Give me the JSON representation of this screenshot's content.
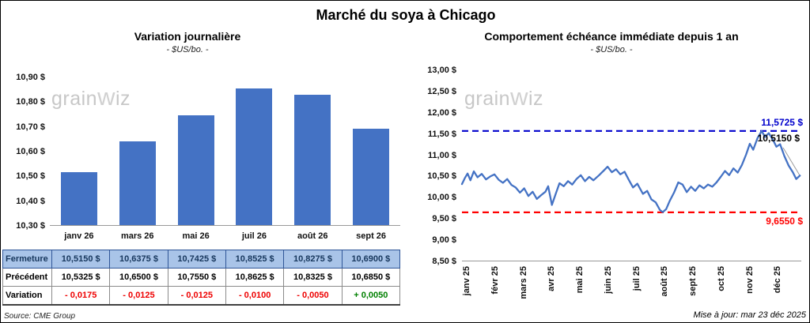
{
  "page": {
    "title": "Marché du soya à Chicago",
    "source": "Source: CME Group",
    "updated": "Mise à jour: mar 23 déc 2025",
    "watermark": {
      "pre": "grain",
      "mid": "w",
      "post": "iz"
    }
  },
  "chart_data": [
    {
      "type": "bar",
      "title": "Variation journalière",
      "subtitle": "- $US/bo. -",
      "categories": [
        "janv 26",
        "mars 26",
        "mai 26",
        "juil 26",
        "août 26",
        "sept 26"
      ],
      "values": [
        10.515,
        10.6375,
        10.7425,
        10.8525,
        10.8275,
        10.69
      ],
      "ylim": [
        10.3,
        10.9
      ],
      "yticks": [
        "10,30 $",
        "10,40 $",
        "10,50 $",
        "10,60 $",
        "10,70 $",
        "10,80 $",
        "10,90 $"
      ],
      "bar_color": "#4472C4",
      "table": {
        "rows": [
          {
            "label": "Fermeture",
            "values": [
              "10,5150  $",
              "10,6375  $",
              "10,7425  $",
              "10,8525  $",
              "10,8275  $",
              "10,6900  $"
            ]
          },
          {
            "label": "Précédent",
            "values": [
              "10,5325  $",
              "10,6500  $",
              "10,7550  $",
              "10,8625  $",
              "10,8325  $",
              "10,6850  $"
            ]
          },
          {
            "label": "Variation",
            "values": [
              "- 0,0175",
              "- 0,0125",
              "- 0,0125",
              "- 0,0100",
              "- 0,0050",
              "+ 0,0050"
            ],
            "value_colors": [
              "#ee0000",
              "#ee0000",
              "#ee0000",
              "#ee0000",
              "#ee0000",
              "#008000"
            ]
          }
        ]
      }
    },
    {
      "type": "line",
      "title": "Comportement échéance immédiate depuis 1 an",
      "subtitle": "- $US/bo. -",
      "x_labels": [
        "janv 25",
        "févr 25",
        "mars 25",
        "avr 25",
        "mai 25",
        "juin 25",
        "juil 25",
        "août 25",
        "sept 25",
        "oct 25",
        "nov 25",
        "déc 25"
      ],
      "ylim": [
        8.5,
        13.0
      ],
      "yticks": [
        "8,50 $",
        "9,00 $",
        "9,50 $",
        "10,00 $",
        "10,50 $",
        "11,00 $",
        "11,50 $",
        "12,00 $",
        "12,50 $",
        "13,00 $"
      ],
      "line_color": "#4472C4",
      "high_line": {
        "value": 11.5725,
        "label": "11,5725 $",
        "color": "#0000cc"
      },
      "low_line": {
        "value": 9.655,
        "label": "9,6550 $",
        "color": "#ff0000"
      },
      "last_point": {
        "value": 10.515,
        "label": "10,5150 $",
        "color": "#000000"
      },
      "series": [
        {
          "name": "échéance immédiate",
          "points": [
            [
              0.0,
              10.32
            ],
            [
              0.1,
              10.46
            ],
            [
              0.2,
              10.57
            ],
            [
              0.3,
              10.41
            ],
            [
              0.42,
              10.62
            ],
            [
              0.55,
              10.48
            ],
            [
              0.7,
              10.56
            ],
            [
              0.85,
              10.43
            ],
            [
              1.0,
              10.5
            ],
            [
              1.15,
              10.55
            ],
            [
              1.3,
              10.42
            ],
            [
              1.45,
              10.35
            ],
            [
              1.6,
              10.44
            ],
            [
              1.75,
              10.3
            ],
            [
              1.9,
              10.24
            ],
            [
              2.05,
              10.12
            ],
            [
              2.2,
              10.22
            ],
            [
              2.35,
              10.04
            ],
            [
              2.5,
              10.14
            ],
            [
              2.65,
              9.97
            ],
            [
              2.8,
              10.06
            ],
            [
              2.95,
              10.14
            ],
            [
              3.05,
              10.27
            ],
            [
              3.18,
              9.83
            ],
            [
              3.32,
              10.1
            ],
            [
              3.45,
              10.34
            ],
            [
              3.6,
              10.27
            ],
            [
              3.75,
              10.39
            ],
            [
              3.9,
              10.31
            ],
            [
              4.05,
              10.44
            ],
            [
              4.2,
              10.53
            ],
            [
              4.35,
              10.39
            ],
            [
              4.5,
              10.49
            ],
            [
              4.65,
              10.41
            ],
            [
              4.85,
              10.53
            ],
            [
              5.0,
              10.63
            ],
            [
              5.15,
              10.73
            ],
            [
              5.3,
              10.6
            ],
            [
              5.45,
              10.67
            ],
            [
              5.6,
              10.55
            ],
            [
              5.75,
              10.61
            ],
            [
              5.9,
              10.42
            ],
            [
              6.05,
              10.24
            ],
            [
              6.2,
              10.33
            ],
            [
              6.4,
              10.09
            ],
            [
              6.55,
              10.16
            ],
            [
              6.7,
              9.96
            ],
            [
              6.85,
              9.89
            ],
            [
              7.0,
              9.71
            ],
            [
              7.1,
              9.66
            ],
            [
              7.22,
              9.73
            ],
            [
              7.35,
              9.93
            ],
            [
              7.5,
              10.12
            ],
            [
              7.65,
              10.36
            ],
            [
              7.8,
              10.31
            ],
            [
              7.95,
              10.13
            ],
            [
              8.1,
              10.26
            ],
            [
              8.25,
              10.16
            ],
            [
              8.4,
              10.29
            ],
            [
              8.55,
              10.22
            ],
            [
              8.7,
              10.31
            ],
            [
              8.85,
              10.26
            ],
            [
              9.0,
              10.36
            ],
            [
              9.15,
              10.49
            ],
            [
              9.3,
              10.63
            ],
            [
              9.45,
              10.53
            ],
            [
              9.6,
              10.69
            ],
            [
              9.75,
              10.59
            ],
            [
              9.9,
              10.77
            ],
            [
              10.05,
              11.02
            ],
            [
              10.18,
              11.27
            ],
            [
              10.3,
              11.13
            ],
            [
              10.45,
              11.4
            ],
            [
              10.6,
              11.57
            ],
            [
              10.72,
              11.43
            ],
            [
              10.85,
              11.52
            ],
            [
              11.0,
              11.36
            ],
            [
              11.12,
              11.2
            ],
            [
              11.25,
              11.26
            ],
            [
              11.4,
              10.98
            ],
            [
              11.55,
              10.76
            ],
            [
              11.7,
              10.6
            ],
            [
              11.82,
              10.44
            ],
            [
              11.95,
              10.52
            ]
          ]
        }
      ]
    }
  ]
}
